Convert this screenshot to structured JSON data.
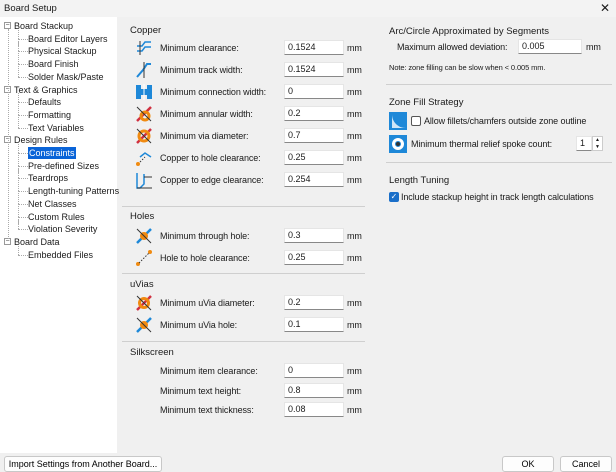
{
  "window": {
    "title": "Board Setup",
    "close": "✕"
  },
  "tree": [
    {
      "label": "Board Stackup",
      "level": 0
    },
    {
      "label": "Board Editor Layers",
      "level": 1
    },
    {
      "label": "Physical Stackup",
      "level": 1
    },
    {
      "label": "Board Finish",
      "level": 1
    },
    {
      "label": "Solder Mask/Paste",
      "level": 1
    },
    {
      "label": "Text & Graphics",
      "level": 0
    },
    {
      "label": "Defaults",
      "level": 1
    },
    {
      "label": "Formatting",
      "level": 1
    },
    {
      "label": "Text Variables",
      "level": 1
    },
    {
      "label": "Design Rules",
      "level": 0
    },
    {
      "label": "Constraints",
      "level": 1,
      "selected": true
    },
    {
      "label": "Pre-defined Sizes",
      "level": 1
    },
    {
      "label": "Teardrops",
      "level": 1
    },
    {
      "label": "Length-tuning Patterns",
      "level": 1
    },
    {
      "label": "Net Classes",
      "level": 1
    },
    {
      "label": "Custom Rules",
      "level": 1
    },
    {
      "label": "Violation Severity",
      "level": 1
    },
    {
      "label": "Board Data",
      "level": 0
    },
    {
      "label": "Embedded Files",
      "level": 1
    }
  ],
  "copper": {
    "title": "Copper",
    "rows": [
      {
        "label": "Minimum clearance:",
        "value": "0.1524",
        "unit": "mm",
        "icon": "clearance-icon"
      },
      {
        "label": "Minimum track width:",
        "value": "0.1524",
        "unit": "mm",
        "icon": "track-width-icon"
      },
      {
        "label": "Minimum connection width:",
        "value": "0",
        "unit": "mm",
        "icon": "connection-width-icon"
      },
      {
        "label": "Minimum annular width:",
        "value": "0.2",
        "unit": "mm",
        "icon": "annular-width-icon"
      },
      {
        "label": "Minimum via diameter:",
        "value": "0.7",
        "unit": "mm",
        "icon": "via-diameter-icon"
      },
      {
        "label": "Copper to hole clearance:",
        "value": "0.25",
        "unit": "mm",
        "icon": "hole-clearance-icon"
      },
      {
        "label": "Copper to edge clearance:",
        "value": "0.254",
        "unit": "mm",
        "icon": "edge-clearance-icon"
      }
    ]
  },
  "holes": {
    "title": "Holes",
    "rows": [
      {
        "label": "Minimum through hole:",
        "value": "0.3",
        "unit": "mm",
        "icon": "through-hole-icon"
      },
      {
        "label": "Hole to hole clearance:",
        "value": "0.25",
        "unit": "mm",
        "icon": "hole-to-hole-icon"
      }
    ]
  },
  "uvias": {
    "title": "uVias",
    "rows": [
      {
        "label": "Minimum uVia diameter:",
        "value": "0.2",
        "unit": "mm",
        "icon": "uvia-diameter-icon"
      },
      {
        "label": "Minimum uVia hole:",
        "value": "0.1",
        "unit": "mm",
        "icon": "uvia-hole-icon"
      }
    ]
  },
  "silkscreen": {
    "title": "Silkscreen",
    "rows": [
      {
        "label": "Minimum item clearance:",
        "value": "0",
        "unit": "mm"
      },
      {
        "label": "Minimum text height:",
        "value": "0.8",
        "unit": "mm"
      },
      {
        "label": "Minimum text thickness:",
        "value": "0.08",
        "unit": "mm"
      }
    ]
  },
  "arc": {
    "title": "Arc/Circle Approximated by Segments",
    "label": "Maximum allowed deviation:",
    "value": "0.005",
    "unit": "mm",
    "note": "Note: zone filling can be slow when < 0.005 mm."
  },
  "zone": {
    "title": "Zone Fill Strategy",
    "fillet_label": "Allow fillets/chamfers outside zone outline",
    "fillet_checked": false,
    "spoke_label": "Minimum thermal relief spoke count:",
    "spoke_value": "1"
  },
  "length": {
    "title": "Length Tuning",
    "stackup_label": "Include stackup height in track length calculations",
    "stackup_checked": true
  },
  "footer": {
    "import": "Import Settings from Another Board...",
    "ok": "OK",
    "cancel": "Cancel"
  },
  "colors": {
    "accent": "#0a64d8",
    "icon_blue": "#1e88d8",
    "icon_red": "#d03040",
    "icon_orange": "#f08a10"
  }
}
